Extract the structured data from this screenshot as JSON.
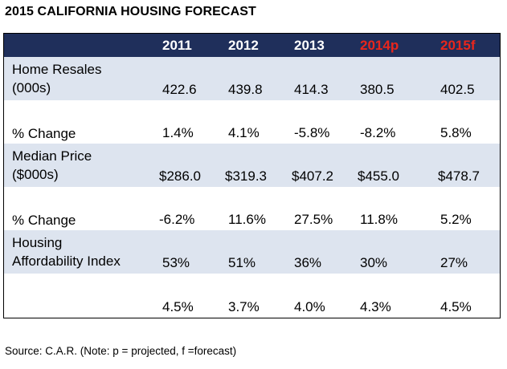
{
  "title": "2015 CALIFORNIA HOUSING FORECAST",
  "source": "Source: C.A.R. (Note: p = projected, f =forecast)",
  "colors": {
    "header_bg": "#1f2f5b",
    "header_text": "#ffffff",
    "forecast_header": "#e8261c",
    "band": "#dde4ef"
  },
  "chart_data": {
    "type": "table",
    "title": "2015 CALIFORNIA HOUSING FORECAST",
    "columns": [
      "2011",
      "2012",
      "2013",
      "2014p",
      "2015f"
    ],
    "rows": [
      {
        "label_lines": [
          "Home Resales",
          "(000s)"
        ],
        "values": [
          "422.6",
          "439.8",
          "414.3",
          "380.5",
          "402.5"
        ]
      },
      {
        "label_lines": [
          "% Change"
        ],
        "values": [
          "1.4%",
          "4.1%",
          "-5.8%",
          "-8.2%",
          "5.8%"
        ]
      },
      {
        "label_lines": [
          "Median Price",
          "($000s)"
        ],
        "values": [
          "$286.0",
          "$319.3",
          "$407.2",
          "$455.0",
          "$478.7"
        ]
      },
      {
        "label_lines": [
          "% Change"
        ],
        "values": [
          "-6.2%",
          "11.6%",
          "27.5%",
          "11.8%",
          "5.2%"
        ]
      },
      {
        "label_lines": [
          "Housing",
          "Affordability Index"
        ],
        "values": [
          "53%",
          "51%",
          "36%",
          "30%",
          "27%"
        ]
      },
      {
        "label_lines": [
          ""
        ],
        "values": [
          "4.5%",
          "3.7%",
          "4.0%",
          "4.3%",
          "4.5%"
        ]
      }
    ]
  }
}
